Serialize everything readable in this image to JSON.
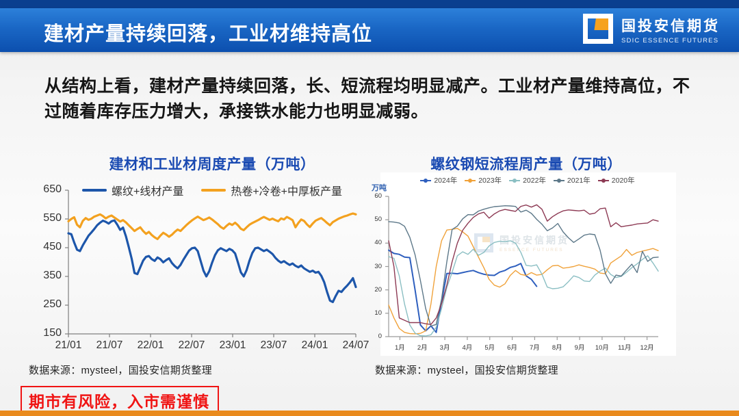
{
  "slide": {
    "title": "建材产量持续回落，工业材维持高位",
    "logo": {
      "cn": "国投安信期货",
      "en": "SDIC ESSENCE FUTURES"
    },
    "paragraph": "从结构上看，建材产量持续回落，长、短流程均明显减产。工业材产量维持高位，不过随着库存压力增大，承接铁水能力也明显减弱。",
    "source_left": "数据来源：mysteel，国投安信期货整理",
    "source_right": "数据来源：mysteel，国投安信期货整理",
    "disclaimer": "期市有风险，入市需谨慎",
    "watermark": {
      "cn": "国投安信期货",
      "en": "ESSENCE FUTURES"
    }
  },
  "colors": {
    "header_navy": "#0a3f8f",
    "header_blue": "#1a67c5",
    "title_blue": "#1a4ab2",
    "footer_orange": "#e98a1d",
    "disclaimer_red": "#f01414"
  },
  "chart_data": [
    {
      "type": "line",
      "title": "建材和工业材周度产量（万吨）",
      "ylabel": "",
      "ylim": [
        150,
        650
      ],
      "yticks": [
        650,
        550,
        450,
        350,
        250,
        150
      ],
      "xticklabels": [
        "21/01",
        "21/07",
        "22/01",
        "22/07",
        "23/01",
        "23/07",
        "24/01",
        "24/07"
      ],
      "grid": false,
      "legend_position": "top",
      "series": [
        {
          "name": "螺纹+线材产量",
          "color": "#1d56aa",
          "width": 3.2,
          "values": [
            500,
            497,
            468,
            443,
            438,
            458,
            475,
            492,
            503,
            515,
            528,
            537,
            544,
            540,
            534,
            542,
            545,
            530,
            512,
            520,
            490,
            452,
            412,
            362,
            358,
            382,
            405,
            418,
            421,
            410,
            404,
            416,
            410,
            399,
            407,
            413,
            397,
            386,
            378,
            390,
            408,
            424,
            440,
            448,
            450,
            438,
            404,
            370,
            350,
            368,
            398,
            424,
            441,
            448,
            443,
            438,
            446,
            441,
            430,
            398,
            364,
            350,
            372,
            405,
            432,
            448,
            450,
            444,
            438,
            443,
            436,
            428,
            415,
            405,
            398,
            403,
            396,
            390,
            395,
            387,
            382,
            388,
            378,
            372,
            366,
            370,
            363,
            366,
            352,
            330,
            296,
            266,
            261,
            282,
            300,
            296,
            308,
            318,
            330,
            344,
            313
          ]
        },
        {
          "name": "热卷+冷卷+中厚板产量",
          "color": "#f3a11f",
          "width": 3.2,
          "values": [
            542,
            550,
            556,
            530,
            521,
            543,
            553,
            547,
            551,
            558,
            562,
            566,
            560,
            552,
            558,
            562,
            555,
            548,
            541,
            546,
            538,
            528,
            518,
            508,
            515,
            521,
            508,
            498,
            505,
            494,
            486,
            480,
            492,
            502,
            496,
            488,
            495,
            505,
            513,
            508,
            518,
            528,
            537,
            545,
            552,
            558,
            552,
            546,
            550,
            555,
            548,
            540,
            532,
            522,
            516,
            526,
            534,
            529,
            537,
            528,
            516,
            511,
            521,
            530,
            536,
            541,
            546,
            552,
            557,
            552,
            547,
            551,
            546,
            542,
            552,
            548,
            557,
            552,
            546,
            521,
            536,
            548,
            543,
            531,
            522,
            534,
            544,
            549,
            553,
            545,
            536,
            528,
            539,
            545,
            551,
            555,
            559,
            562,
            566,
            569,
            566
          ]
        }
      ]
    },
    {
      "type": "line",
      "title": "螺纹钢短流程周产量（万吨）",
      "ylabel": "万吨",
      "ylim": [
        0,
        60
      ],
      "yticks": [
        60,
        50,
        40,
        30,
        20,
        10,
        0
      ],
      "xticklabels": [
        "1月",
        "2月",
        "3月",
        "4月",
        "5月",
        "6月",
        "7月",
        "8月",
        "9月",
        "10月",
        "11月",
        "12月"
      ],
      "weeks_total": 52,
      "grid": false,
      "legend_position": "top",
      "series": [
        {
          "name": "2024年",
          "color": "#2e5fbe",
          "width": 2,
          "values": [
            37,
            35.6,
            35.2,
            34,
            33.8,
            20,
            5,
            2.5,
            4.6,
            1.8,
            15,
            27,
            27.1,
            26.9,
            27.4,
            27.9,
            28.3,
            27.4,
            26.7,
            26.3,
            26.2,
            27.6,
            28.3,
            29.6,
            30.2,
            31.3,
            26,
            24.5,
            21.5
          ]
        },
        {
          "name": "2023年",
          "color": "#f0a23a",
          "width": 1.4,
          "values": [
            13.5,
            8,
            3.5,
            1.8,
            1.3,
            1.2,
            1.4,
            2.5,
            14,
            30,
            41,
            45.6,
            45.9,
            46.3,
            44.8,
            43,
            38.5,
            34,
            29.5,
            24.5,
            22,
            21.2,
            22.6,
            26.2,
            28.3,
            26.6,
            26.2,
            27.4,
            26.3,
            26.6,
            28.6,
            30.3,
            30.5,
            29.3,
            29.6,
            30,
            30.7,
            30.1,
            29.6,
            28.9,
            27.2,
            26.9,
            31.5,
            33,
            34.5,
            37.3,
            34.8,
            36,
            36.6,
            37.1,
            37.7,
            36.8
          ]
        },
        {
          "name": "2022年",
          "color": "#8bbfc3",
          "width": 1.4,
          "values": [
            34.2,
            33.5,
            26,
            14,
            5,
            1.5,
            0.4,
            0.3,
            0.8,
            4,
            12,
            21,
            27.5,
            34.6,
            36.3,
            35.2,
            37.4,
            34.8,
            36,
            38.8,
            40.3,
            40.8,
            40.6,
            41,
            40,
            36.1,
            30.5,
            30.2,
            30.7,
            26.7,
            21.2,
            20.5,
            20.7,
            21.3,
            23.5,
            26,
            25.3,
            23.8,
            23.6,
            26.3,
            28,
            29.3,
            26.6,
            25.3,
            25.8,
            27.5,
            29.5,
            31.1,
            33,
            34.6,
            31.5,
            28
          ]
        },
        {
          "name": "2021年",
          "color": "#5d7889",
          "width": 1.4,
          "values": [
            49.2,
            49,
            48.6,
            47.2,
            42.5,
            35,
            24,
            12,
            4.5,
            5.2,
            16,
            32,
            45.8,
            47.3,
            50.4,
            52.2,
            52.1,
            53.7,
            54.5,
            55.1,
            55.6,
            55.8,
            56,
            55.9,
            55.7,
            53.3,
            54.1,
            52.7,
            50.2,
            48.1,
            45.3,
            46.5,
            48.4,
            44.8,
            42.3,
            40.3,
            41.8,
            43.4,
            43.9,
            43.6,
            37,
            27,
            22.8,
            26.3,
            25.9,
            28.5,
            31,
            27.4,
            36.5,
            32.2,
            33.8,
            34
          ]
        },
        {
          "name": "2020年",
          "color": "#8d3a54",
          "width": 1.4,
          "values": [
            41,
            30,
            8,
            7,
            6,
            6,
            6,
            5.5,
            5.2,
            8,
            14,
            22,
            32,
            40,
            45.5,
            48.5,
            51,
            52.5,
            53.2,
            50.7,
            52.5,
            53.8,
            54.4,
            54,
            53.6,
            55.7,
            56.3,
            55.4,
            56.4,
            54.5,
            49.4,
            51.3,
            52.7,
            53.8,
            54.2,
            54,
            53.8,
            54.1,
            52.4,
            52.8,
            54.7,
            55,
            47,
            48.7,
            47,
            47.4,
            47.7,
            48.2,
            48.4,
            48.6,
            50,
            49.4
          ]
        }
      ]
    }
  ]
}
